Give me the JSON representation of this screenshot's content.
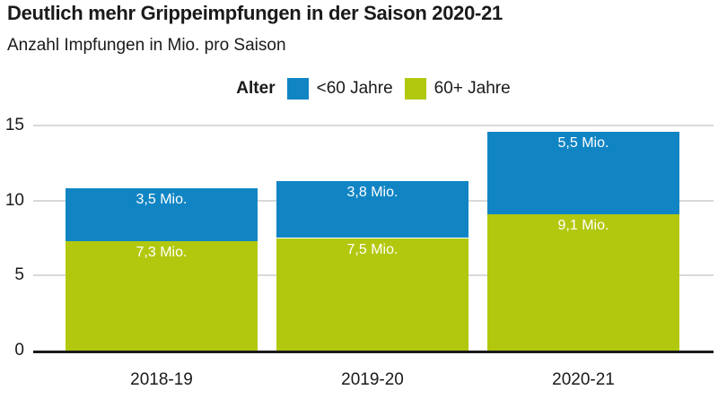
{
  "header": {
    "title": "Deutlich mehr Grippeimpfungen in der Saison 2020-21",
    "subtitle": "Anzahl Impfungen in Mio. pro Saison"
  },
  "legend": {
    "title": "Alter",
    "items": [
      {
        "label": "<60 Jahre",
        "color": "#1185c4"
      },
      {
        "label": "60+ Jahre",
        "color": "#b2c80e"
      }
    ]
  },
  "chart_data": {
    "type": "bar",
    "stacked": true,
    "title": "Deutlich mehr Grippeimpfungen in der Saison 2020-21",
    "subtitle": "Anzahl Impfungen in Mio. pro Saison",
    "categories": [
      "2018-19",
      "2019-20",
      "2020-21"
    ],
    "series": [
      {
        "name": "60+ Jahre",
        "color": "#b2c80e",
        "values": [
          7.3,
          7.5,
          9.1
        ],
        "labels": [
          "7,3 Mio.",
          "7,5 Mio.",
          "9,1 Mio."
        ]
      },
      {
        "name": "<60 Jahre",
        "color": "#1185c4",
        "values": [
          3.5,
          3.8,
          5.5
        ],
        "labels": [
          "3,5 Mio.",
          "3,8 Mio.",
          "5,5 Mio."
        ]
      }
    ],
    "totals": [
      10.8,
      11.3,
      14.6
    ],
    "xlabel": "",
    "ylabel": "Anzahl Impfungen in Mio. pro Saison",
    "ylim": [
      0,
      15
    ],
    "yticks": [
      0,
      5,
      10,
      15
    ],
    "grid": true,
    "legend_position": "top",
    "label_unit": "Mio."
  },
  "colors": {
    "under60_blue": "#1185c4",
    "over60_green": "#b2c80e",
    "axis": "#1a1a1a",
    "gridline": "#d9d9d9",
    "bar_label_text": "#ffffff",
    "background": "#ffffff"
  }
}
